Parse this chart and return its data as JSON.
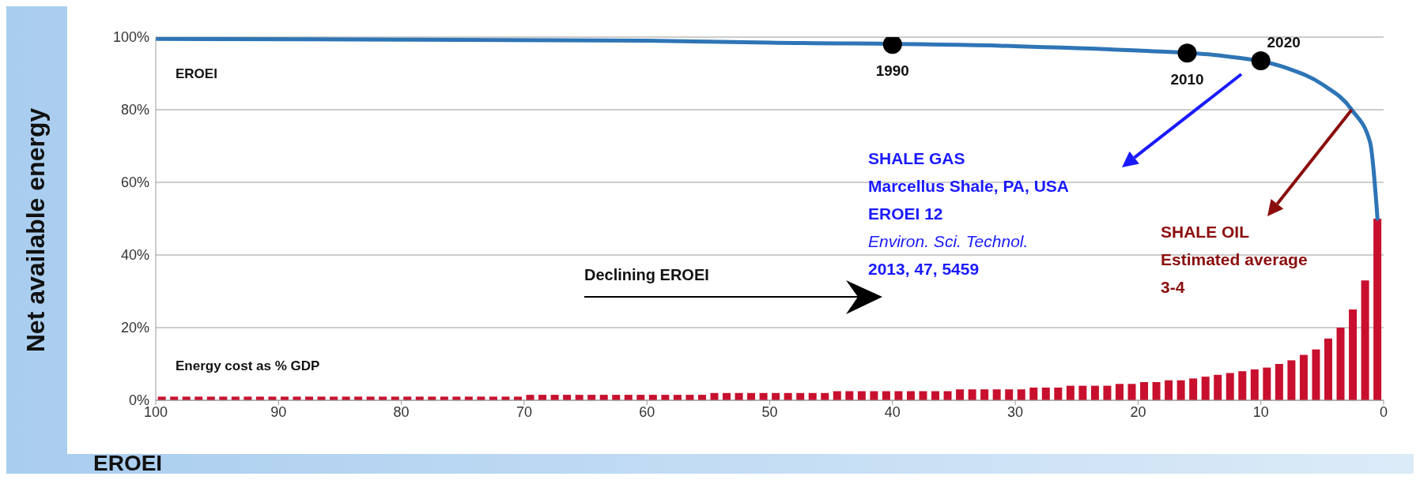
{
  "chart_data": {
    "type": "bar",
    "ylabel": "Net available energy",
    "xlabel": "EROEI",
    "xlim": [
      100,
      0
    ],
    "xticks": [
      100,
      90,
      80,
      70,
      60,
      50,
      40,
      30,
      20,
      10,
      0
    ],
    "ylim": [
      0,
      100
    ],
    "yticks": [
      {
        "value": 0,
        "label": "0%"
      },
      {
        "value": 20,
        "label": "20%"
      },
      {
        "value": 40,
        "label": "40%"
      },
      {
        "value": 60,
        "label": "60%"
      },
      {
        "value": 80,
        "label": "80%"
      },
      {
        "value": 100,
        "label": "100%"
      }
    ],
    "grid": "y",
    "series": [
      {
        "name": "Energy cost as % GDP",
        "color": "#c8102e",
        "x": [
          0.5,
          1.5,
          2.5,
          3.5,
          4.5,
          5.5,
          6.5,
          7.5,
          8.5,
          9.5,
          10.5,
          11.5,
          12.5,
          13.5,
          14.5,
          15.5,
          16.5,
          17.5,
          18.5,
          19.5,
          20.5,
          21.5,
          22.5,
          23.5,
          24.5,
          25.5,
          26.5,
          27.5,
          28.5,
          29.5,
          30.5,
          31.5,
          32.5,
          33.5,
          34.5,
          35.5,
          36.5,
          37.5,
          38.5,
          39.5,
          40.5,
          41.5,
          42.5,
          43.5,
          44.5,
          45.5,
          46.5,
          47.5,
          48.5,
          49.5,
          50.5,
          51.5,
          52.5,
          53.5,
          54.5,
          55.5,
          56.5,
          57.5,
          58.5,
          59.5,
          60.5,
          61.5,
          62.5,
          63.5,
          64.5,
          65.5,
          66.5,
          67.5,
          68.5,
          69.5,
          70.5,
          71.5,
          72.5,
          73.5,
          74.5,
          75.5,
          76.5,
          77.5,
          78.5,
          79.5,
          80.5,
          81.5,
          82.5,
          83.5,
          84.5,
          85.5,
          86.5,
          87.5,
          88.5,
          89.5,
          90.5,
          91.5,
          92.5,
          93.5,
          94.5,
          95.5,
          96.5,
          97.5,
          98.5,
          99.5
        ],
        "values": [
          50,
          33,
          25,
          20,
          17,
          14,
          12.5,
          11,
          10,
          9,
          8.5,
          8,
          7.5,
          7,
          6.5,
          6,
          5.5,
          5.5,
          5,
          5,
          4.5,
          4.5,
          4,
          4,
          4,
          4,
          3.5,
          3.5,
          3.5,
          3,
          3,
          3,
          3,
          3,
          3,
          2.5,
          2.5,
          2.5,
          2.5,
          2.5,
          2.5,
          2.5,
          2.5,
          2.5,
          2.5,
          2,
          2,
          2,
          2,
          2,
          2,
          2,
          2,
          2,
          2,
          1.5,
          1.5,
          1.5,
          1.5,
          1.5,
          1.5,
          1.5,
          1.5,
          1.5,
          1.5,
          1.5,
          1.5,
          1.5,
          1.5,
          1.5,
          1,
          1,
          1,
          1,
          1,
          1,
          1,
          1,
          1,
          1,
          1,
          1,
          1,
          1,
          1,
          1,
          1,
          1,
          1,
          1,
          1,
          1,
          1,
          1,
          1,
          1,
          1,
          1,
          1,
          1
        ]
      },
      {
        "name": "EROEI",
        "type": "line",
        "color": "#2e75b6",
        "marker": "none",
        "x": [
          100,
          80,
          60,
          50,
          30,
          20,
          13,
          8,
          5,
          2.6,
          1.1,
          0.5
        ],
        "values": [
          99.5,
          99.3,
          99,
          98.5,
          97.5,
          96.3,
          94.8,
          91.6,
          87,
          80,
          71,
          50
        ]
      },
      {
        "type": "scatter",
        "color": "#000000",
        "marker": "circle",
        "x": [
          40,
          16,
          10
        ],
        "values": [
          98,
          95.6,
          93.5
        ]
      }
    ],
    "annotations": [
      {
        "text": "1990",
        "x": 40,
        "y": 98
      },
      {
        "text": "2010",
        "x": 16,
        "y": 95.6
      },
      {
        "text": "2020",
        "x": 10,
        "y": 93.5
      },
      "SHALE GAS\nMarcellus Shale, PA, USA\nEROEI 12\nEnviron. Sci. Technol.\n2013, 47, 5459",
      {
        "text": "SHALE OIL\nEstimated average\n3-4",
        "x": 2.6,
        "y": 80
      },
      "Declining EROEI"
    ]
  }
}
